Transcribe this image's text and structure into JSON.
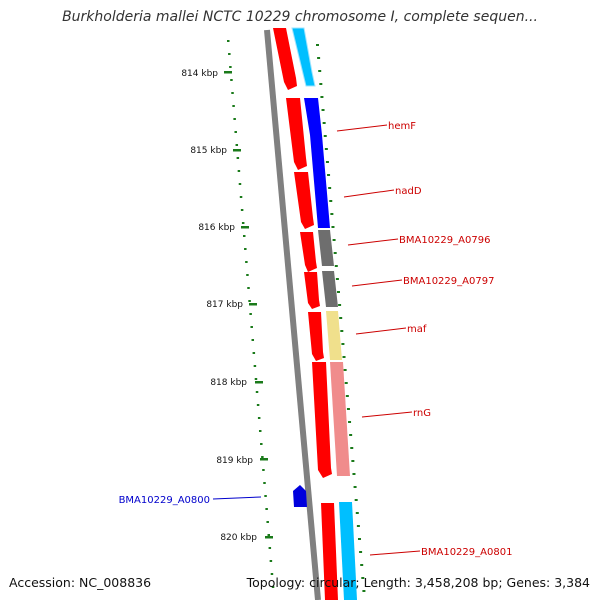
{
  "title": "Burkholderia mallei NCTC 10229 chromosome I, complete sequen...",
  "footer": {
    "accession": "Accession: NC_008836",
    "summary": "Topology: circular; Length: 3,458,208 bp; Genes: 3,384"
  },
  "colors": {
    "backbone": "#808080",
    "forward_cds": "#ff0000",
    "reverse_cds": "#00bfff",
    "gc_skew_ticks": "#1a7a1a",
    "gene_label": "#cc0000",
    "highlight_label": "#0000cc"
  },
  "kbp_labels": [
    "814 kbp",
    "815 kbp",
    "816 kbp",
    "817 kbp",
    "818 kbp",
    "819 kbp",
    "820 kbp"
  ],
  "genes": [
    {
      "label": "hemF",
      "color": "#0000ff"
    },
    {
      "label": "nadD",
      "color": "#0000ff"
    },
    {
      "label": "BMA10229_A0796",
      "color": "#6e6e6e"
    },
    {
      "label": "BMA10229_A0797",
      "color": "#6e6e6e"
    },
    {
      "label": "maf",
      "color": "#f0e08c"
    },
    {
      "label": "rnG",
      "color": "#f08c8c"
    },
    {
      "label": "BMA10229_A0801",
      "color": "#00bfff"
    }
  ],
  "highlight": {
    "label": "BMA10229_A0800",
    "icon": "feature-marker-icon",
    "color": "#0000cc"
  }
}
